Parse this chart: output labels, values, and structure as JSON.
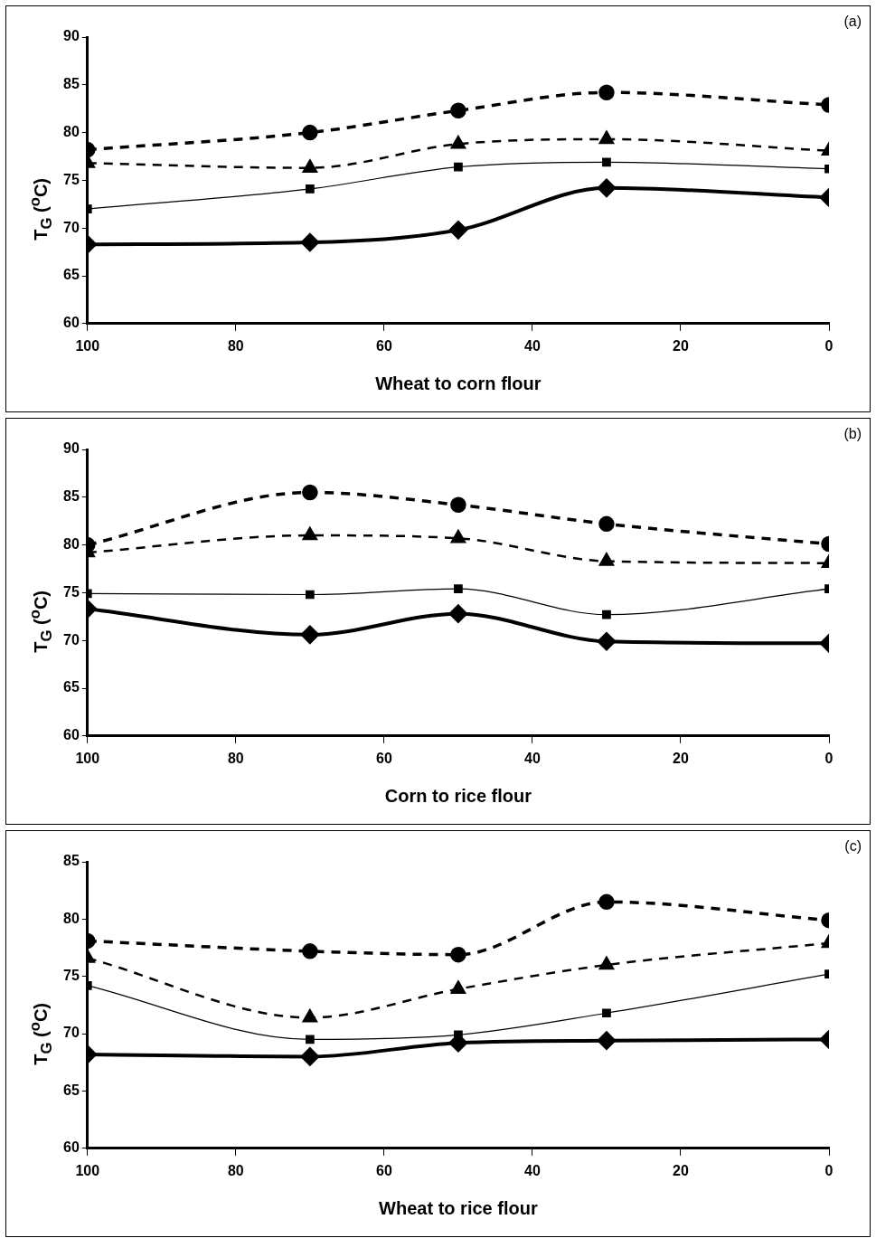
{
  "chart_data": [
    {
      "type": "line",
      "xlabel": "Wheat to corn flour",
      "ylabel": "T$_{G}$ ($^{o}$C)",
      "annotations": [
        "(a)"
      ],
      "x": [
        100,
        70,
        50,
        30,
        0
      ],
      "xlim": [
        100,
        0
      ],
      "xticks": [
        100,
        80,
        60,
        40,
        20,
        0
      ],
      "ylim": [
        60,
        90
      ],
      "yticks": [
        60,
        65,
        70,
        75,
        80,
        85,
        90
      ],
      "grid": false,
      "legend": false,
      "series": [
        {
          "color": "#000000",
          "marker": "circle",
          "line_style": "dashed",
          "values": [
            78.2,
            80.0,
            82.3,
            84.2,
            82.9
          ]
        },
        {
          "color": "#000000",
          "marker": "triangle",
          "line_style": "dashed",
          "values": [
            76.8,
            76.3,
            78.8,
            79.3,
            78.1
          ]
        },
        {
          "color": "#000000",
          "marker": "square",
          "line_style": "solid",
          "values": [
            72.0,
            74.1,
            76.4,
            76.9,
            76.2
          ]
        },
        {
          "color": "#000000",
          "marker": "diamond",
          "line_style": "solid",
          "values": [
            68.3,
            68.5,
            69.8,
            74.2,
            73.2
          ]
        }
      ]
    },
    {
      "type": "line",
      "xlabel": "Corn to rice flour",
      "ylabel": "T$_{G}$ ($^{o}$C)",
      "annotations": [
        "(b)"
      ],
      "x": [
        100,
        70,
        50,
        30,
        0
      ],
      "xlim": [
        100,
        0
      ],
      "xticks": [
        100,
        80,
        60,
        40,
        20,
        0
      ],
      "ylim": [
        60,
        90
      ],
      "yticks": [
        60,
        65,
        70,
        75,
        80,
        85,
        90
      ],
      "grid": false,
      "legend": false,
      "series": [
        {
          "color": "#000000",
          "marker": "circle",
          "line_style": "dashed",
          "values": [
            80.0,
            85.5,
            84.2,
            82.2,
            80.1
          ]
        },
        {
          "color": "#000000",
          "marker": "triangle",
          "line_style": "dashed",
          "values": [
            79.2,
            81.0,
            80.7,
            78.3,
            78.1
          ]
        },
        {
          "color": "#000000",
          "marker": "square",
          "line_style": "solid",
          "values": [
            74.9,
            74.8,
            75.4,
            72.7,
            75.4
          ]
        },
        {
          "color": "#000000",
          "marker": "diamond",
          "line_style": "solid",
          "values": [
            73.3,
            70.6,
            72.8,
            69.9,
            69.7
          ]
        }
      ]
    },
    {
      "type": "line",
      "xlabel": "Wheat to rice flour",
      "ylabel": "T$_{G}$ ($^{o}$C)",
      "annotations": [
        "(c)"
      ],
      "x": [
        100,
        70,
        50,
        30,
        0
      ],
      "xlim": [
        100,
        0
      ],
      "xticks": [
        100,
        80,
        60,
        40,
        20,
        0
      ],
      "ylim": [
        60,
        85
      ],
      "yticks": [
        60,
        65,
        70,
        75,
        80,
        85
      ],
      "grid": false,
      "legend": false,
      "series": [
        {
          "color": "#000000",
          "marker": "circle",
          "line_style": "dashed",
          "values": [
            78.1,
            77.2,
            76.9,
            81.5,
            79.9
          ]
        },
        {
          "color": "#000000",
          "marker": "triangle",
          "line_style": "dashed",
          "values": [
            76.6,
            71.4,
            73.9,
            76.0,
            77.9
          ]
        },
        {
          "color": "#000000",
          "marker": "square",
          "line_style": "solid",
          "values": [
            74.2,
            69.5,
            69.9,
            71.8,
            75.2
          ]
        },
        {
          "color": "#000000",
          "marker": "diamond",
          "line_style": "solid",
          "values": [
            68.2,
            68.0,
            69.2,
            69.4,
            69.5
          ]
        }
      ]
    }
  ]
}
